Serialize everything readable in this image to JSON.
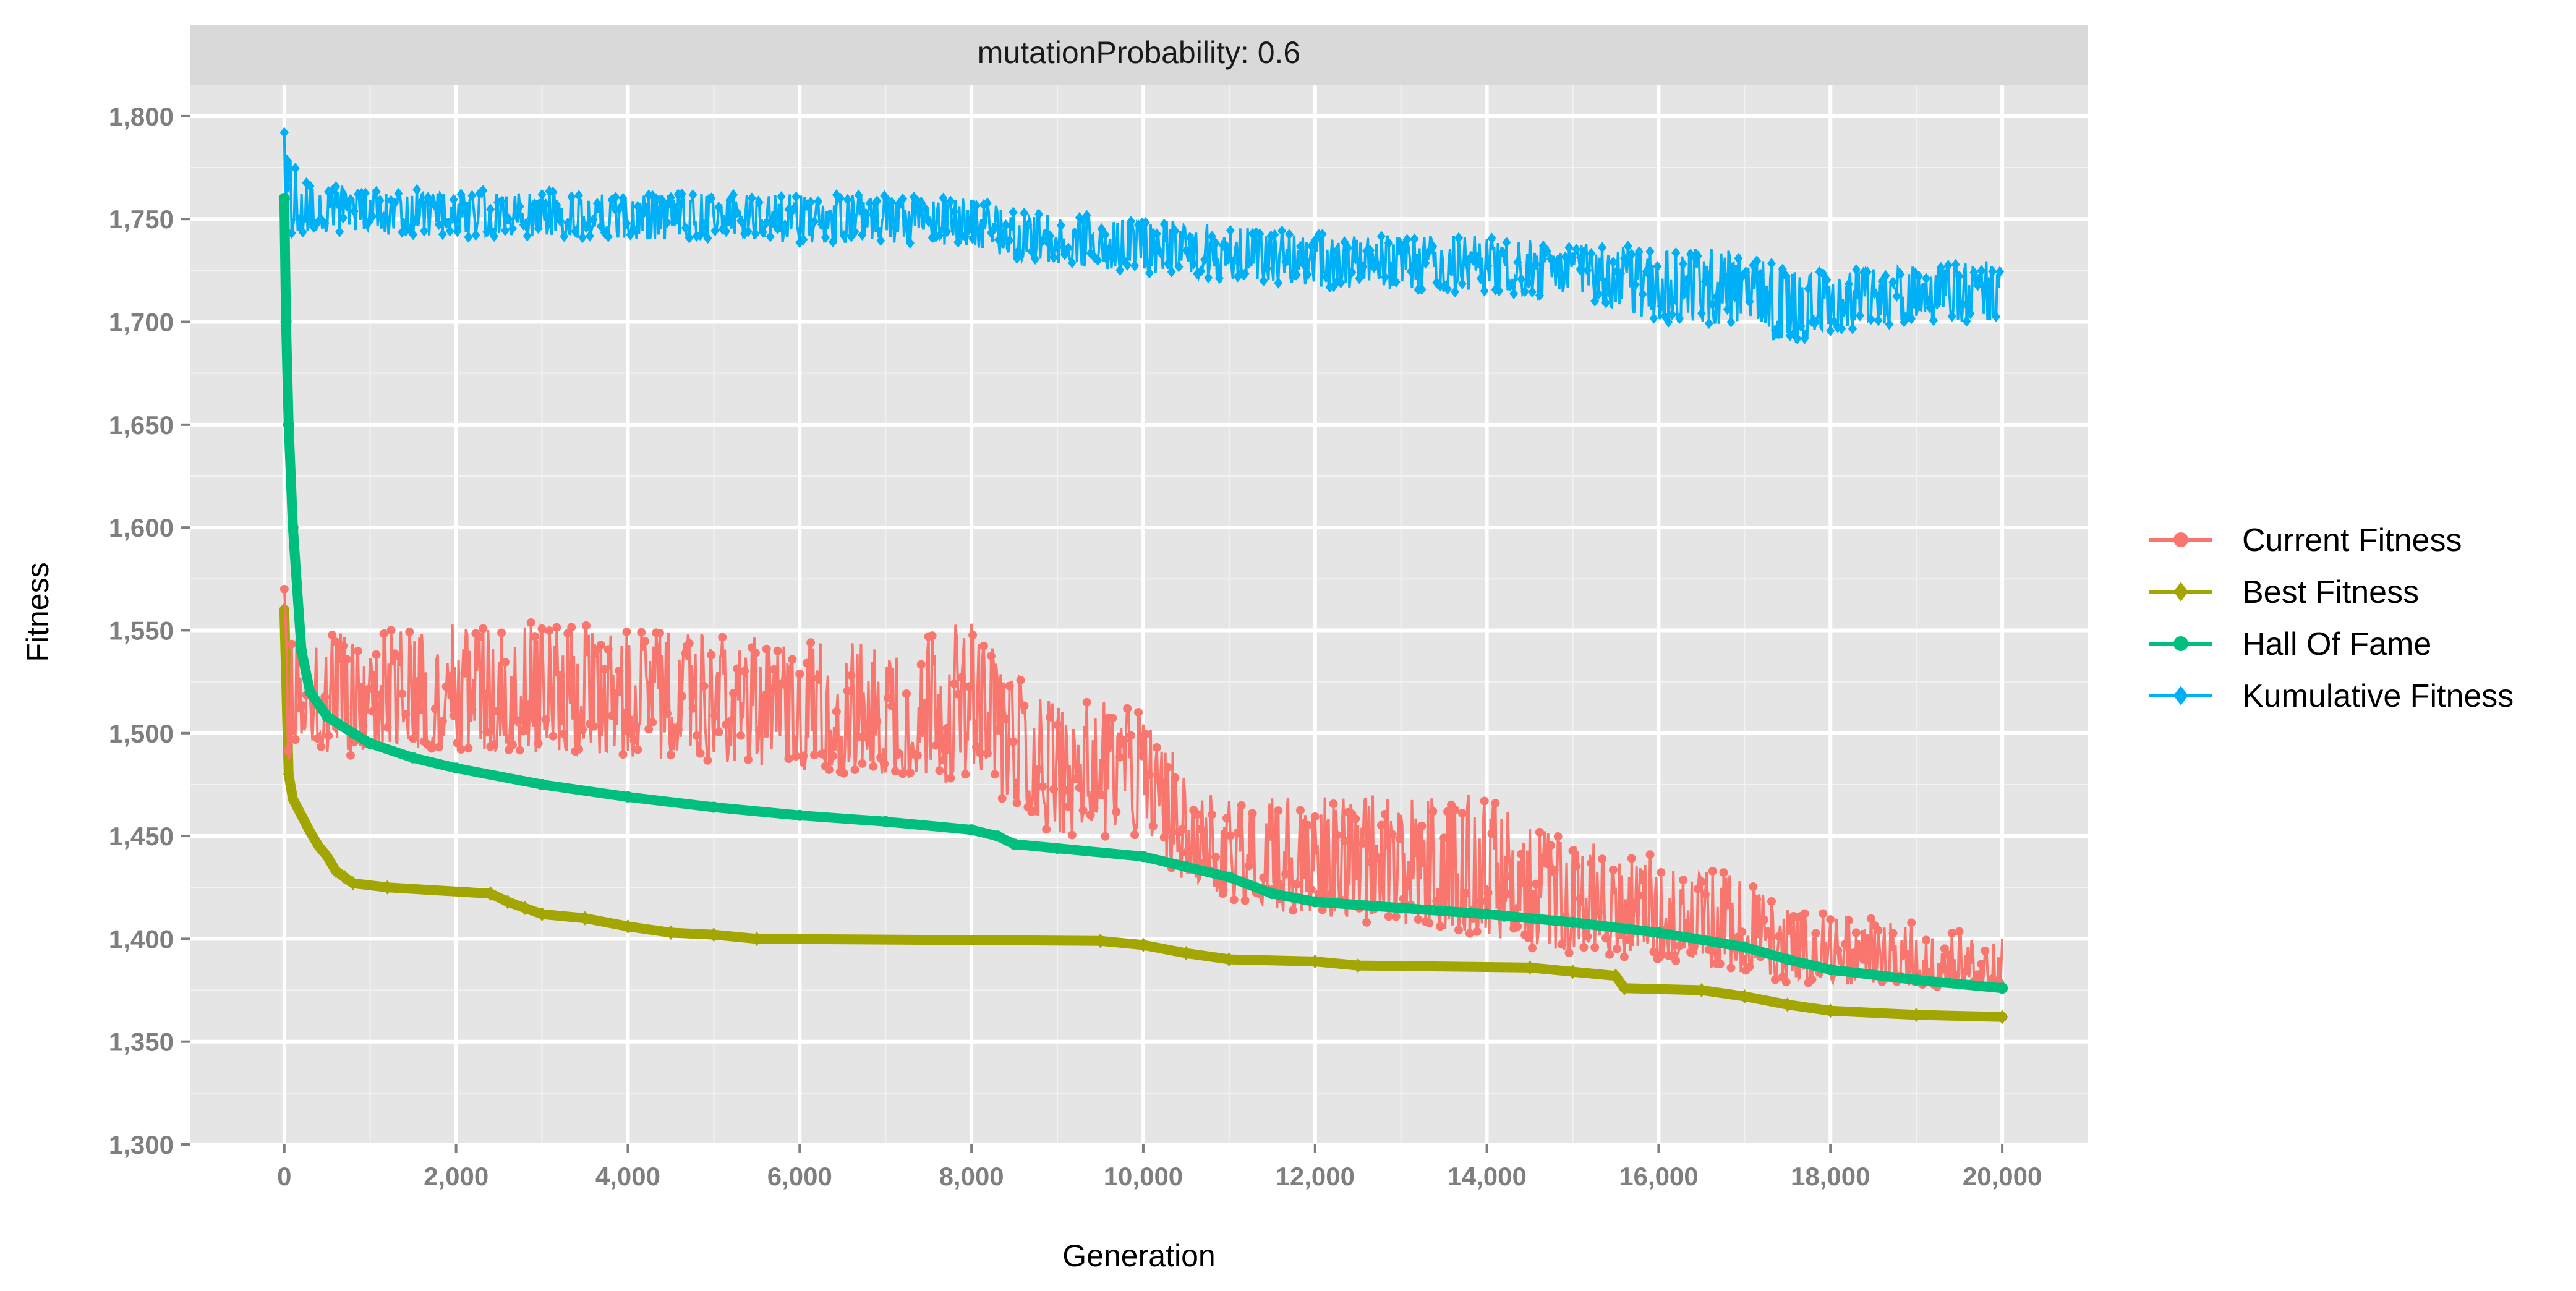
{
  "chart_data": {
    "type": "line",
    "facet_label": "mutationProbability: 0.6",
    "xlabel": "Generation",
    "ylabel": "Fitness",
    "xlim": [
      -1100,
      21000
    ],
    "ylim": [
      1300,
      1815
    ],
    "x_ticks": [
      0,
      2000,
      4000,
      6000,
      8000,
      10000,
      12000,
      14000,
      16000,
      18000,
      20000
    ],
    "x_tick_labels": [
      "0",
      "2,000",
      "4,000",
      "6,000",
      "8,000",
      "10,000",
      "12,000",
      "14,000",
      "16,000",
      "18,000",
      "20,000"
    ],
    "y_ticks": [
      1300,
      1350,
      1400,
      1450,
      1500,
      1550,
      1600,
      1650,
      1700,
      1750,
      1800
    ],
    "y_tick_labels": [
      "1,300",
      "1,350",
      "1,400",
      "1,450",
      "1,500",
      "1,550",
      "1,600",
      "1,650",
      "1,700",
      "1,750",
      "1,800"
    ],
    "grid": true,
    "legend_position": "right",
    "series": [
      {
        "name": "Current Fitness",
        "color": "#F8766D",
        "marker": "circle",
        "spread": "band",
        "x": [
          0,
          50,
          200,
          500,
          1000,
          2000,
          3000,
          4000,
          5000,
          6000,
          7000,
          8000,
          8500,
          9000,
          10000,
          10500,
          11000,
          12000,
          13000,
          14000,
          14500,
          15000,
          16000,
          17000,
          17500,
          18000,
          19000,
          20000
        ],
        "center": [
          1520,
          1520,
          1518,
          1517,
          1517,
          1518,
          1517,
          1515,
          1512,
          1508,
          1505,
          1502,
          1490,
          1482,
          1478,
          1450,
          1440,
          1435,
          1430,
          1428,
          1415,
          1412,
          1405,
          1398,
          1390,
          1388,
          1386,
          1385
        ],
        "low": [
          1485,
          1485,
          1488,
          1488,
          1490,
          1492,
          1490,
          1488,
          1485,
          1482,
          1478,
          1475,
          1460,
          1450,
          1448,
          1425,
          1418,
          1410,
          1405,
          1402,
          1395,
          1393,
          1390,
          1383,
          1378,
          1378,
          1377,
          1376
        ],
        "high": [
          1570,
          1555,
          1548,
          1548,
          1550,
          1553,
          1555,
          1550,
          1548,
          1545,
          1545,
          1555,
          1530,
          1515,
          1515,
          1480,
          1470,
          1470,
          1470,
          1470,
          1455,
          1450,
          1440,
          1430,
          1415,
          1412,
          1408,
          1400
        ]
      },
      {
        "name": "Best Fitness",
        "color": "#A3A500",
        "marker": "diamond",
        "x": [
          0,
          50,
          100,
          200,
          300,
          400,
          500,
          600,
          700,
          800,
          1200,
          2400,
          2600,
          2800,
          3000,
          3500,
          4000,
          4500,
          5000,
          5500,
          9500,
          10000,
          10500,
          11000,
          12000,
          12500,
          14500,
          15000,
          15500,
          15600,
          16500,
          17000,
          17500,
          18000,
          19000,
          20000
        ],
        "y": [
          1560,
          1480,
          1468,
          1460,
          1452,
          1445,
          1440,
          1433,
          1430,
          1427,
          1425,
          1422,
          1418,
          1415,
          1412,
          1410,
          1406,
          1403,
          1402,
          1400,
          1399,
          1397,
          1393,
          1390,
          1389,
          1387,
          1386,
          1384,
          1382,
          1376,
          1375,
          1372,
          1368,
          1365,
          1363,
          1362
        ]
      },
      {
        "name": "Hall Of Fame",
        "color": "#00BF7D",
        "marker": "circle",
        "x": [
          0,
          20,
          50,
          100,
          200,
          300,
          500,
          800,
          1000,
          1500,
          2000,
          3000,
          4000,
          5000,
          6000,
          7000,
          8000,
          8300,
          8500,
          9000,
          10000,
          10500,
          11000,
          11500,
          12000,
          13000,
          14000,
          15000,
          16000,
          17000,
          17500,
          18000,
          19000,
          20000
        ],
        "y": [
          1760,
          1700,
          1650,
          1600,
          1540,
          1520,
          1508,
          1500,
          1495,
          1488,
          1483,
          1475,
          1469,
          1464,
          1460,
          1457,
          1453,
          1450,
          1446,
          1444,
          1440,
          1435,
          1430,
          1422,
          1418,
          1415,
          1412,
          1408,
          1403,
          1396,
          1390,
          1385,
          1380,
          1376
        ]
      },
      {
        "name": "Kumulative Fitness",
        "color": "#00B0F6",
        "marker": "diamond",
        "spread": "band",
        "x": [
          0,
          200,
          1000,
          2000,
          3000,
          4000,
          5000,
          6000,
          7000,
          8000,
          8500,
          9000,
          10000,
          11000,
          12000,
          13000,
          14000,
          15000,
          16000,
          17000,
          17500,
          18000,
          19000,
          20000
        ],
        "center": [
          1757,
          1755,
          1754,
          1752,
          1752,
          1751,
          1751,
          1750,
          1750,
          1748,
          1742,
          1740,
          1737,
          1733,
          1730,
          1728,
          1727,
          1724,
          1718,
          1715,
          1705,
          1708,
          1712,
          1710
        ],
        "low": [
          1740,
          1742,
          1742,
          1741,
          1741,
          1740,
          1740,
          1738,
          1738,
          1737,
          1730,
          1728,
          1724,
          1720,
          1717,
          1715,
          1714,
          1710,
          1700,
          1698,
          1688,
          1695,
          1700,
          1700
        ],
        "high": [
          1792,
          1768,
          1765,
          1764,
          1764,
          1762,
          1763,
          1762,
          1762,
          1760,
          1755,
          1753,
          1750,
          1747,
          1743,
          1742,
          1742,
          1738,
          1737,
          1735,
          1725,
          1725,
          1727,
          1730
        ]
      }
    ]
  }
}
